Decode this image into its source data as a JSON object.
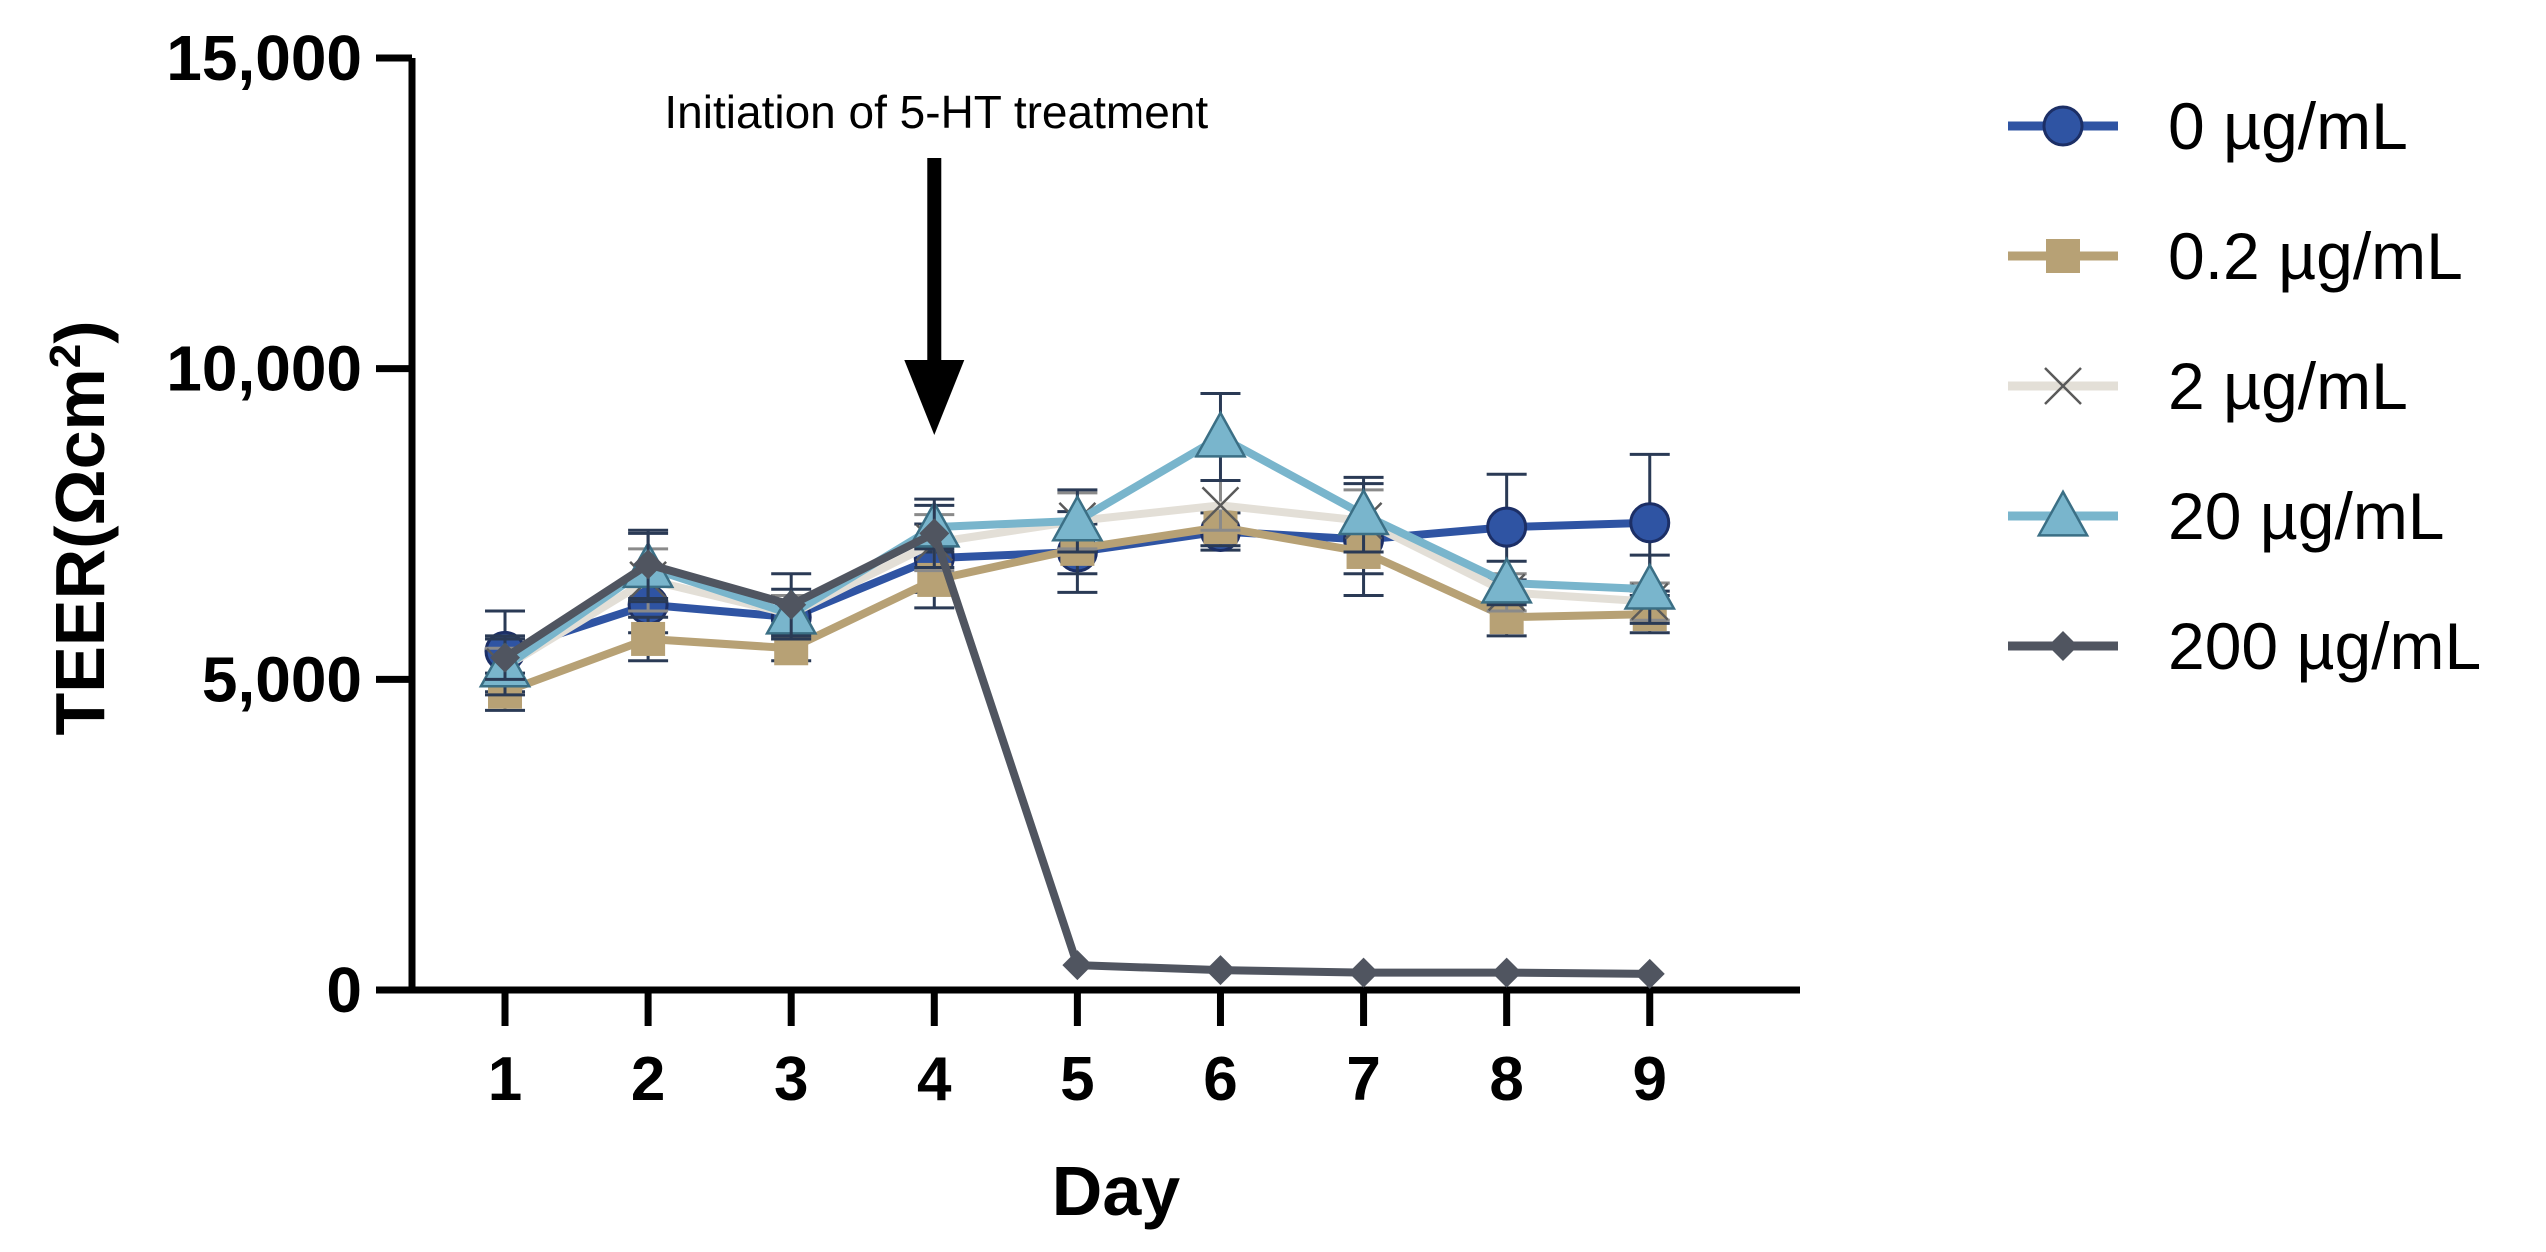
{
  "chart_data": {
    "type": "line",
    "title": "",
    "xlabel": "Day",
    "ylabel": "TEER(Ωcm²)",
    "ylabel_parts": {
      "main": "TEER(Ωcm",
      "sup": "2",
      "close": ")"
    },
    "x": [
      1,
      2,
      3,
      4,
      5,
      6,
      7,
      8,
      9
    ],
    "x_tick_labels": [
      "1",
      "2",
      "3",
      "4",
      "5",
      "6",
      "7",
      "8",
      "9"
    ],
    "ylim": [
      0,
      15000
    ],
    "y_ticks": [
      0,
      5000,
      10000,
      15000
    ],
    "y_tick_labels": [
      "0",
      "5,000",
      "10,000",
      "15,000"
    ],
    "grid": false,
    "legend_position": "right",
    "annotation": {
      "text": "Initiation of 5-HT treatment",
      "x": 4,
      "arrow": "down"
    },
    "series": [
      {
        "name": "0 µg/mL",
        "color": "#2f54a3",
        "marker": "circle",
        "values": [
          5450,
          6200,
          6000,
          6950,
          7050,
          7380,
          7250,
          7450,
          7520
        ],
        "errors": [
          650,
          450,
          350,
          550,
          650,
          300,
          900,
          850,
          1100
        ]
      },
      {
        "name": "0.2 µg/mL",
        "color": "#b7a175",
        "marker": "square",
        "values": [
          4800,
          5650,
          5500,
          6600,
          7100,
          7450,
          7050,
          6000,
          6050
        ],
        "errors": [
          300,
          350,
          200,
          450,
          400,
          300,
          350,
          300,
          300
        ]
      },
      {
        "name": "2 µg/mL",
        "color": "#e3dfd7",
        "marker": "x",
        "values": [
          5200,
          6600,
          6050,
          7200,
          7550,
          7800,
          7550,
          6400,
          6250
        ],
        "errors": [
          300,
          500,
          300,
          450,
          450,
          400,
          500,
          300,
          300
        ]
      },
      {
        "name": "20 µg/mL",
        "color": "#79b5cc",
        "marker": "triangle",
        "values": [
          5200,
          6800,
          6050,
          7450,
          7550,
          8900,
          7650,
          6550,
          6450
        ],
        "errors": [
          450,
          550,
          400,
          350,
          500,
          700,
          600,
          350,
          550
        ]
      },
      {
        "name": "200 µg/mL",
        "color": "#505560",
        "marker": "diamond",
        "values": [
          5350,
          6850,
          6200,
          7350,
          400,
          320,
          280,
          280,
          260
        ],
        "errors": [
          350,
          550,
          500,
          550,
          0,
          0,
          0,
          0,
          0
        ]
      }
    ]
  }
}
